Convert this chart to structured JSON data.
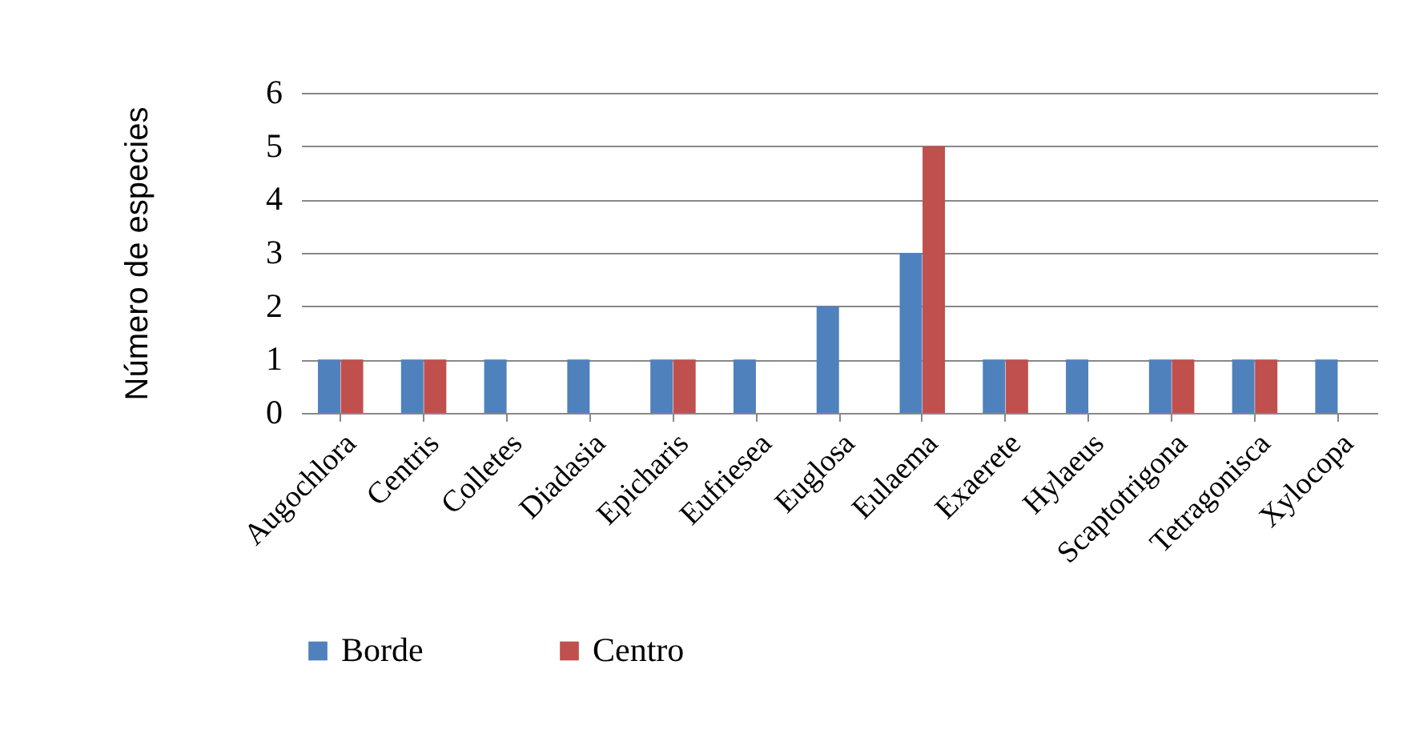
{
  "chart_data": {
    "type": "bar",
    "ylabel": "Número de especies",
    "categories": [
      "Augochlora",
      "Centris",
      "Colletes",
      "Diadasia",
      "Epicharis",
      "Eufriesea",
      "Euglosa",
      "Eulaema",
      "Exaerete",
      "Hylaeus",
      "Scaptotrigona",
      "Tetragonisca",
      "Xylocopa"
    ],
    "series": [
      {
        "name": "Borde",
        "color": "#4f81bd",
        "values": [
          1,
          1,
          1,
          1,
          1,
          1,
          2,
          3,
          1,
          1,
          1,
          1,
          1
        ]
      },
      {
        "name": "Centro",
        "color": "#c0504d",
        "values": [
          1,
          1,
          0,
          0,
          1,
          0,
          0,
          5,
          1,
          0,
          1,
          1,
          0
        ]
      }
    ],
    "ylim": [
      0,
      6
    ],
    "yticks": [
      0,
      1,
      2,
      3,
      4,
      5,
      6
    ],
    "grid": "y",
    "legend": "bottom"
  }
}
